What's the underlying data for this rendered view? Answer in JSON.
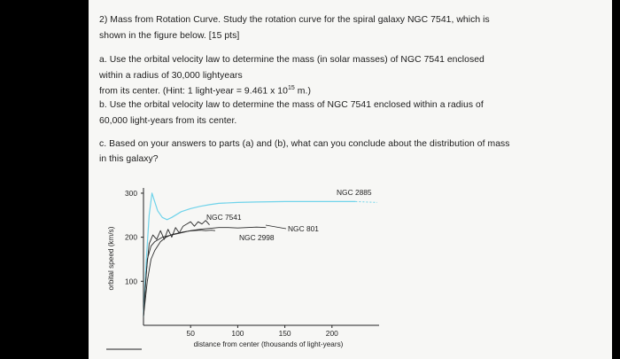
{
  "question": {
    "line1": "2) Mass from Rotation Curve. Study the rotation curve for the spiral galaxy NGC 7541, which is",
    "line2": "shown in the figure below. [15 pts]"
  },
  "part_a": {
    "line1": "a. Use the orbital velocity law to determine the mass (in solar masses) of NGC 7541 enclosed",
    "line2": "within a radius of 30,000 lightyears",
    "line3_pre": "from its center. (Hint: 1 light-year = 9.461 x 10",
    "line3_exp": "15",
    "line3_post": " m.)"
  },
  "part_b": {
    "line1": "b. Use the orbital velocity law to determine the mass of NGC 7541 enclosed within a radius of",
    "line2": "60,000 light-years from its center."
  },
  "part_c": {
    "line1": "c. Based on your answers to parts (a) and (b), what can you conclude about the distribution of mass",
    "line2": "in this galaxy?"
  },
  "chart_data": {
    "type": "line",
    "xlabel": "distance from center (thousands of light-years)",
    "ylabel": "orbital speed (km/s)",
    "xlim": [
      0,
      250
    ],
    "ylim": [
      0,
      320
    ],
    "x_ticks": [
      "50",
      "100",
      "150",
      "200"
    ],
    "y_ticks": [
      "100",
      "200",
      "300"
    ],
    "series": [
      {
        "name": "NGC 2885",
        "color": "#6fd3ea",
        "x": [
          0,
          3,
          6,
          9,
          12,
          15,
          20,
          25,
          30,
          40,
          50,
          60,
          70,
          80,
          100,
          120,
          150,
          180,
          210,
          225
        ],
        "y": [
          20,
          150,
          250,
          300,
          280,
          260,
          245,
          240,
          245,
          258,
          265,
          270,
          274,
          277,
          279,
          280,
          281,
          281,
          281,
          281
        ]
      },
      {
        "name": "NGC 7541",
        "color": "#2a2a2a",
        "x": [
          0,
          3,
          6,
          10,
          14,
          18,
          22,
          26,
          30,
          34,
          38,
          42,
          46,
          50,
          54,
          58,
          62,
          66,
          70
        ],
        "y": [
          20,
          120,
          185,
          205,
          195,
          215,
          195,
          218,
          200,
          222,
          210,
          225,
          230,
          235,
          225,
          235,
          230,
          238,
          228
        ]
      },
      {
        "name": "NGC 801",
        "color": "#2a2a2a",
        "x": [
          0,
          4,
          8,
          12,
          20,
          30,
          40,
          50,
          60,
          70,
          80,
          90,
          100,
          110,
          120,
          130
        ],
        "y": [
          20,
          150,
          180,
          190,
          200,
          205,
          210,
          215,
          218,
          220,
          222,
          222,
          221,
          222,
          223,
          222
        ]
      },
      {
        "name": "NGC 2998",
        "color": "#2a2a2a",
        "x": [
          0,
          4,
          8,
          12,
          18,
          24,
          30,
          36,
          42,
          48,
          54,
          60,
          66,
          72,
          76
        ],
        "y": [
          20,
          100,
          150,
          170,
          190,
          200,
          206,
          209,
          212,
          214,
          215,
          216,
          215,
          216,
          215
        ]
      }
    ]
  }
}
